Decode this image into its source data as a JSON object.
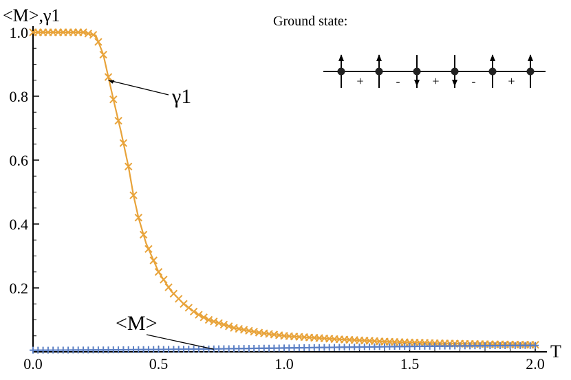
{
  "chart_data": {
    "type": "line",
    "ylabel": "<M>,γ1",
    "xlabel": "T",
    "xlim": [
      0.0,
      2.0
    ],
    "ylim": [
      0.0,
      1.0
    ],
    "x_ticks": [
      "0.0",
      "0.5",
      "1.0",
      "1.5",
      "2.0"
    ],
    "y_ticks": [
      "0.2",
      "0.4",
      "0.6",
      "0.8",
      "1.0"
    ],
    "grid": false,
    "series": [
      {
        "name": "γ1",
        "color": "#E8A33A",
        "marker": "x",
        "x": [
          0.0,
          0.2,
          0.25,
          0.28,
          0.3,
          0.32,
          0.35,
          0.38,
          0.4,
          0.42,
          0.45,
          0.5,
          0.55,
          0.6,
          0.65,
          0.7,
          0.8,
          0.9,
          1.0,
          1.2,
          1.4,
          1.6,
          1.8,
          2.0
        ],
        "y": [
          1.0,
          1.0,
          0.99,
          0.93,
          0.86,
          0.79,
          0.69,
          0.58,
          0.49,
          0.42,
          0.34,
          0.25,
          0.19,
          0.15,
          0.12,
          0.1,
          0.075,
          0.06,
          0.05,
          0.04,
          0.032,
          0.027,
          0.024,
          0.022
        ]
      },
      {
        "name": "<M>",
        "color": "#5B7FC4",
        "marker": "+",
        "x": [
          0.0,
          0.3,
          0.6,
          0.9,
          1.2,
          1.5,
          1.8,
          2.0
        ],
        "y": [
          0.005,
          0.006,
          0.008,
          0.011,
          0.014,
          0.017,
          0.019,
          0.02
        ]
      }
    ],
    "annotations": [
      {
        "text": "γ1",
        "target_x": 0.3,
        "target_y": 0.85
      },
      {
        "text": "<M>",
        "target_x": 0.72,
        "target_y": 0.008
      }
    ]
  },
  "inset": {
    "title": "Ground state:",
    "spins": [
      "up",
      "up",
      "down",
      "down",
      "up",
      "up"
    ],
    "signs": [
      "+",
      "-",
      "+",
      "-",
      "+"
    ]
  }
}
